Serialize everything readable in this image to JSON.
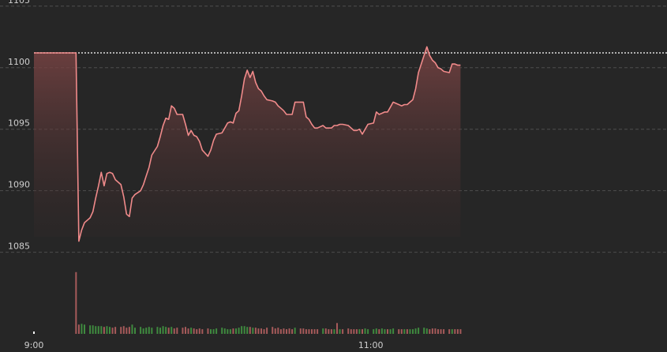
{
  "chart_data": {
    "type": "line",
    "x": [
      540,
      555,
      556,
      557,
      558,
      560,
      561,
      562,
      563,
      564,
      565,
      566,
      567,
      568,
      569,
      571,
      572,
      573,
      574,
      575,
      576,
      578,
      579,
      580,
      581,
      582,
      584,
      585,
      586,
      587,
      588,
      589,
      590,
      591,
      593,
      594,
      595,
      596,
      597,
      598,
      599,
      600,
      602,
      603,
      604,
      605,
      607,
      608,
      609,
      610,
      611,
      612,
      613,
      614,
      615,
      616,
      617,
      618,
      619,
      620,
      621,
      622,
      623,
      625,
      626,
      627,
      628,
      629,
      630,
      631,
      632,
      633,
      635,
      636,
      637,
      638,
      639,
      640,
      641,
      643,
      644,
      645,
      646,
      647,
      648,
      649,
      650,
      652,
      653,
      654,
      655,
      656,
      657,
      658,
      659,
      661,
      662,
      663,
      664,
      665,
      666,
      667,
      668,
      670,
      671,
      672,
      673,
      674,
      675,
      676,
      677,
      679,
      680,
      681,
      682,
      683,
      684,
      685,
      686,
      688,
      689,
      690,
      691,
      692
    ],
    "series": [
      {
        "color": "#f08a8a",
        "values": [
          1101.2,
          1101.2,
          1085.9,
          1086.8,
          1087.4,
          1087.8,
          1088.3,
          1089.4,
          1090.4,
          1091.5,
          1090.4,
          1091.4,
          1091.5,
          1091.4,
          1090.9,
          1090.5,
          1089.5,
          1088.1,
          1087.9,
          1089.4,
          1089.7,
          1090.0,
          1090.5,
          1091.2,
          1091.9,
          1092.9,
          1093.6,
          1094.4,
          1095.3,
          1095.9,
          1095.8,
          1096.9,
          1096.7,
          1096.2,
          1096.2,
          1095.4,
          1094.5,
          1094.9,
          1094.5,
          1094.4,
          1094.0,
          1093.3,
          1092.8,
          1093.3,
          1094.1,
          1094.6,
          1094.7,
          1095.1,
          1095.5,
          1095.6,
          1095.5,
          1096.3,
          1096.5,
          1097.7,
          1099.1,
          1099.8,
          1099.2,
          1099.7,
          1098.8,
          1098.3,
          1098.1,
          1097.7,
          1097.4,
          1097.3,
          1097.2,
          1096.9,
          1096.7,
          1096.5,
          1096.2,
          1096.2,
          1096.2,
          1097.2,
          1097.2,
          1097.2,
          1096.0,
          1095.8,
          1095.4,
          1095.1,
          1095.1,
          1095.3,
          1095.1,
          1095.1,
          1095.1,
          1095.3,
          1095.3,
          1095.4,
          1095.4,
          1095.3,
          1095.1,
          1094.9,
          1094.9,
          1095.0,
          1094.6,
          1095.0,
          1095.4,
          1095.5,
          1096.4,
          1096.2,
          1096.3,
          1096.4,
          1096.4,
          1096.8,
          1097.2,
          1097.0,
          1096.9,
          1097.0,
          1097.0,
          1097.2,
          1097.4,
          1098.3,
          1099.6,
          1101.0,
          1101.7,
          1101.0,
          1100.6,
          1100.4,
          1100.0,
          1099.9,
          1099.7,
          1099.6,
          1100.3,
          1100.3,
          1100.2,
          1100.2
        ]
      }
    ],
    "reference": 1101.2,
    "volume": {
      "up_color": "#3f8a3f",
      "down_color": "#a65a5a",
      "first_color": "#ffffff",
      "vlim": [
        0,
        90
      ],
      "values": [
        3,
        80,
        12,
        13,
        12,
        11,
        11,
        10,
        10,
        10,
        9,
        10,
        9,
        8,
        9,
        9,
        10,
        8,
        9,
        12,
        8,
        9,
        7,
        8,
        9,
        8,
        9,
        8,
        10,
        9,
        8,
        9,
        7,
        8,
        8,
        9,
        7,
        8,
        7,
        6,
        7,
        6,
        7,
        6,
        6,
        7,
        8,
        7,
        6,
        6,
        7,
        7,
        8,
        10,
        10,
        9,
        9,
        8,
        8,
        7,
        7,
        6,
        8,
        9,
        7,
        8,
        6,
        7,
        6,
        7,
        6,
        8,
        7,
        7,
        6,
        6,
        6,
        6,
        6,
        7,
        7,
        6,
        6,
        6,
        14,
        6,
        6,
        7,
        6,
        6,
        6,
        6,
        6,
        7,
        6,
        6,
        7,
        6,
        7,
        6,
        6,
        6,
        7,
        6,
        6,
        6,
        6,
        6,
        6,
        7,
        8,
        8,
        7,
        6,
        7,
        7,
        6,
        6,
        6,
        6,
        6,
        6,
        6,
        6
      ]
    },
    "xlim": [
      540,
      765
    ],
    "xticks": [
      {
        "value": 540,
        "label": "9:00"
      },
      {
        "value": 660,
        "label": "11:00"
      }
    ],
    "ylim": [
      1084.4,
      1105.5
    ],
    "yticks": [
      1085,
      1090,
      1095,
      1100,
      1105
    ],
    "grid": true
  }
}
